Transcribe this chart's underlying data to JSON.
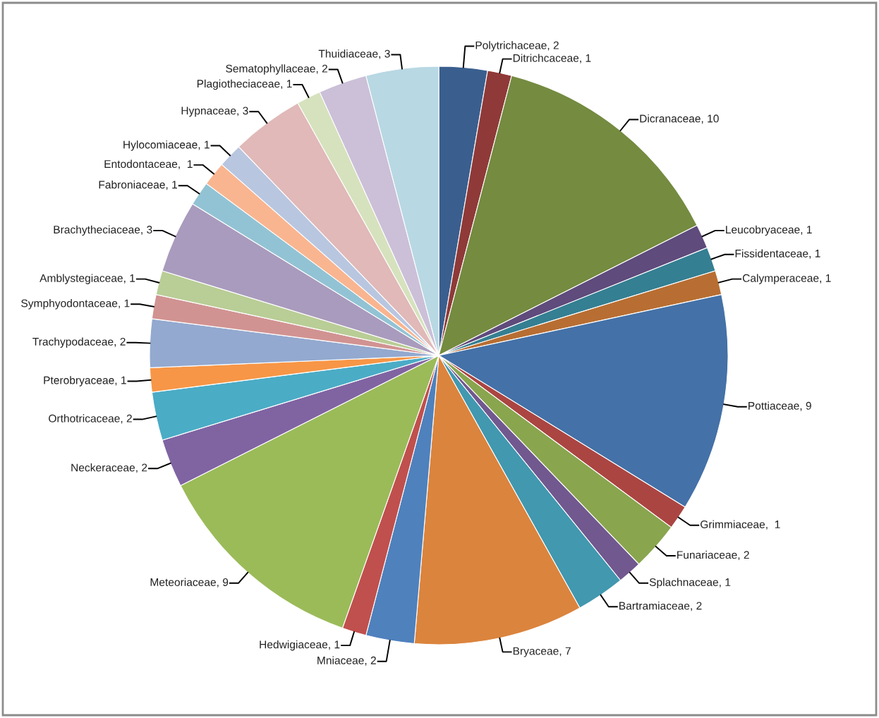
{
  "chart_data": {
    "type": "pie",
    "categories": [
      "Polytrichaceae, 2",
      "Ditrichcaceae, 1",
      "Dicranaceae, 10",
      "Leucobryaceae, 1",
      "Fissidentaceae, 1",
      "Calymperaceae, 1",
      "Pottiaceae, 9",
      "Grimmiaceae,  1",
      "Funariaceae, 2",
      "Splachnaceae, 1",
      "Bartramiaceae, 2",
      "Bryaceae, 7",
      "Mniaceae, 2",
      "Hedwigiaceae, 1",
      "Meteoriaceae, 9",
      "Neckeraceae, 2",
      "Orthotricaceae, 2",
      "Pterobryaceae, 1",
      "Trachypodaceae, 2",
      "Symphyodontaceae, 1",
      "Amblystegiaceae, 1",
      "Brachytheciaceae, 3",
      "Fabroniaceae, 1",
      "Entodontaceae,  1",
      "Hylocomiaceae, 1",
      "Hypnaceae, 3",
      "Plagiotheciaceae, 1",
      "Sematophyllaceae, 2",
      "Thuidiaceae, 3"
    ],
    "values": [
      2,
      1,
      10,
      1,
      1,
      1,
      9,
      1,
      2,
      1,
      2,
      7,
      2,
      1,
      9,
      2,
      2,
      1,
      2,
      1,
      1,
      3,
      1,
      1,
      1,
      3,
      1,
      2,
      3
    ],
    "colors": [
      "#3a5f8f",
      "#8f3a38",
      "#748b40",
      "#5f4b7c",
      "#357f92",
      "#b86e32",
      "#4471a7",
      "#ab4542",
      "#89a54e",
      "#71588f",
      "#4198af",
      "#db843d",
      "#4f81bd",
      "#c0504d",
      "#9bbb59",
      "#8064a2",
      "#4bacc6",
      "#f79646",
      "#93a9cf",
      "#d19392",
      "#b9cd96",
      "#a99bbd",
      "#92c3d4",
      "#f9b590",
      "#b9c6e0",
      "#e0b9b8",
      "#d6e2bd",
      "#cbc0d8",
      "#b8d8e3"
    ]
  }
}
